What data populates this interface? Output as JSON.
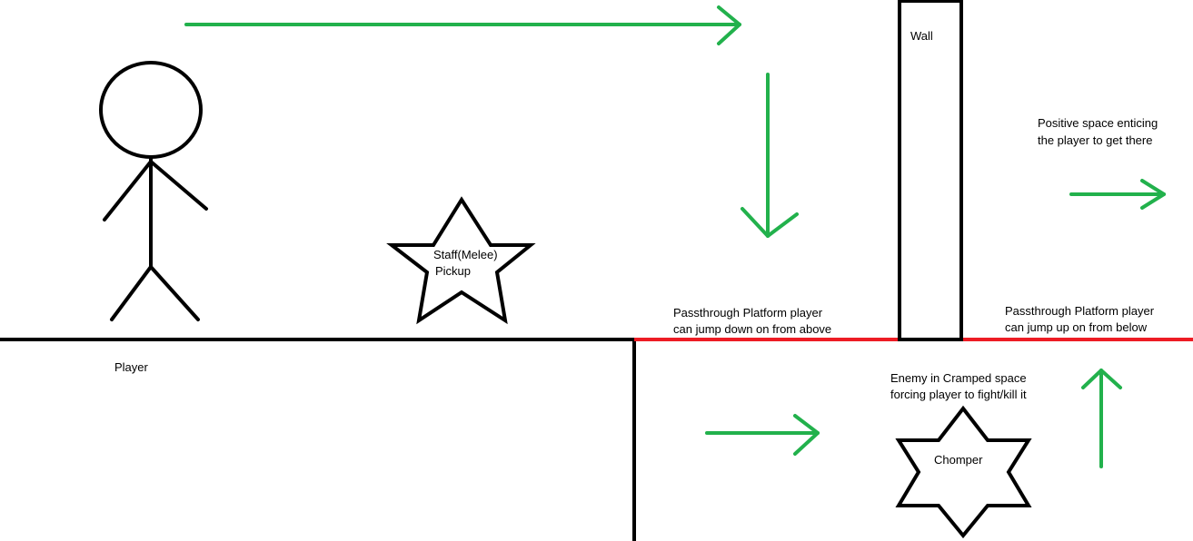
{
  "labels": {
    "player": "Player",
    "staff_pickup_line1": "Staff(Melee)",
    "staff_pickup_line2": "Pickup",
    "wall": "Wall",
    "passthrough_down_line1": "Passthrough Platform player",
    "passthrough_down_line2": "can jump down on from above",
    "passthrough_up_line1": "Passthrough Platform player",
    "passthrough_up_line2": "can jump up on from below",
    "positive_space_line1": "Positive space enticing",
    "positive_space_line2": "the player to get there",
    "enemy_line1": "Enemy in Cramped space",
    "enemy_line2": "forcing player to fight/kill it",
    "chomper": "Chomper"
  },
  "colors": {
    "ink": "#000000",
    "arrow": "#22b14c",
    "platform": "#ed1c24",
    "background": "#ffffff"
  },
  "arrows": [
    {
      "name": "arrow-top-right",
      "direction": "right"
    },
    {
      "name": "arrow-drop-down",
      "direction": "down"
    },
    {
      "name": "arrow-positive-space-right",
      "direction": "right"
    },
    {
      "name": "arrow-lower-right",
      "direction": "right"
    },
    {
      "name": "arrow-jump-up",
      "direction": "up"
    }
  ],
  "icons": {
    "player": "stick-figure-icon",
    "pickup": "five-point-star-icon",
    "enemy": "six-point-star-icon"
  }
}
